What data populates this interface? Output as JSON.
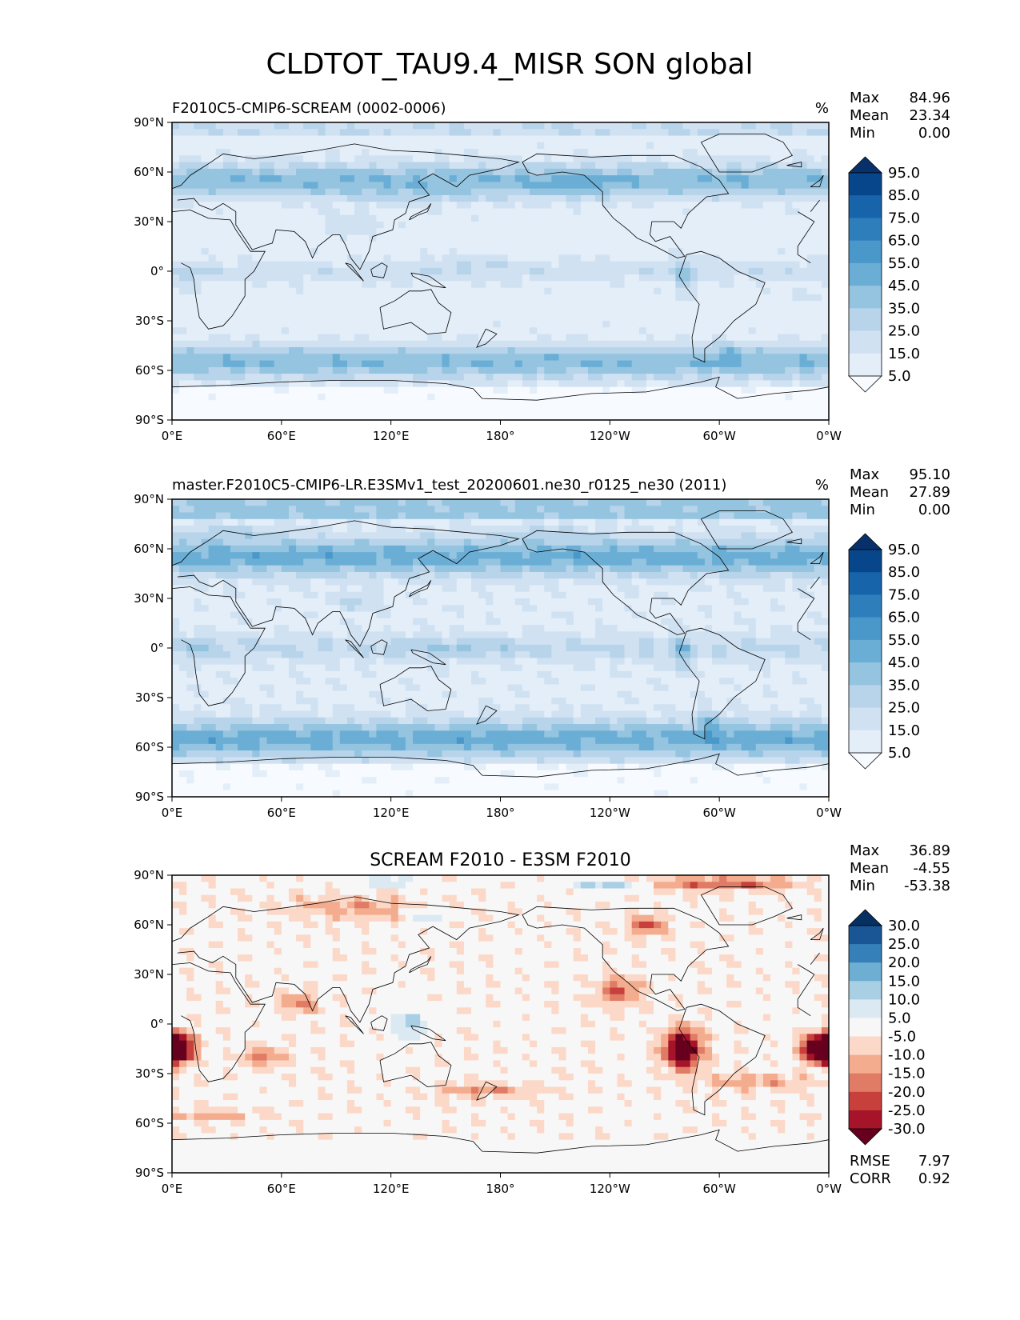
{
  "figure_title": "CLDTOT_TAU9.4_MISR SON global",
  "colors": {
    "blues": [
      "#f7fbff",
      "#e3eef9",
      "#d0e1f2",
      "#b7d4ea",
      "#94c4df",
      "#6aaed6",
      "#4a98c9",
      "#2e7ebc",
      "#1764ab",
      "#08468b",
      "#08306b"
    ],
    "diverging": [
      "#67001f",
      "#a51429",
      "#c7403b",
      "#e07b65",
      "#f4ac8e",
      "#fbd8c7",
      "#f7f7f7",
      "#dbe9f2",
      "#a9cfe5",
      "#6eaed2",
      "#3580b9",
      "#1a5696",
      "#053061"
    ],
    "land_outline": "#000000"
  },
  "chart_data": [
    {
      "type": "heatmap",
      "title": "F2010C5-CMIP6-SCREAM (0002-0006)",
      "units": "%",
      "stats": [
        {
          "label": "Max",
          "value": "84.96"
        },
        {
          "label": "Mean",
          "value": "23.34"
        },
        {
          "label": "Min",
          "value": "0.00"
        }
      ],
      "colorbar_labels": [
        "95.0",
        "85.0",
        "75.0",
        "65.0",
        "55.0",
        "45.0",
        "35.0",
        "25.0",
        "15.0",
        "5.0"
      ],
      "colormap": "blues",
      "xticks": [
        "0°E",
        "60°E",
        "120°E",
        "180°",
        "120°W",
        "60°W",
        "0°W"
      ],
      "yticks": [
        "90°N",
        "60°N",
        "30°N",
        "0°",
        "30°S",
        "60°S",
        "90°S"
      ],
      "xlim": [
        0,
        360
      ],
      "ylim": [
        -90,
        90
      ]
    },
    {
      "type": "heatmap",
      "title": "master.F2010C5-CMIP6-LR.E3SMv1_test_20200601.ne30_r0125_ne30 (2011)",
      "units": "%",
      "stats": [
        {
          "label": "Max",
          "value": "95.10"
        },
        {
          "label": "Mean",
          "value": "27.89"
        },
        {
          "label": "Min",
          "value": "0.00"
        }
      ],
      "colorbar_labels": [
        "95.0",
        "85.0",
        "75.0",
        "65.0",
        "55.0",
        "45.0",
        "35.0",
        "25.0",
        "15.0",
        "5.0"
      ],
      "colormap": "blues",
      "xticks": [
        "0°E",
        "60°E",
        "120°E",
        "180°",
        "120°W",
        "60°W",
        "0°W"
      ],
      "yticks": [
        "90°N",
        "60°N",
        "30°N",
        "0°",
        "30°S",
        "60°S",
        "90°S"
      ],
      "xlim": [
        0,
        360
      ],
      "ylim": [
        -90,
        90
      ]
    },
    {
      "type": "heatmap",
      "title": "SCREAM F2010 - E3SM F2010",
      "units": "",
      "stats": [
        {
          "label": "Max",
          "value": "36.89"
        },
        {
          "label": "Mean",
          "value": "-4.55"
        },
        {
          "label": "Min",
          "value": "-53.38"
        }
      ],
      "colorbar_labels": [
        "30.0",
        "25.0",
        "20.0",
        "15.0",
        "10.0",
        "5.0",
        "-5.0",
        "-10.0",
        "-15.0",
        "-20.0",
        "-25.0",
        "-30.0"
      ],
      "colormap": "diverging",
      "xticks": [
        "0°E",
        "60°E",
        "120°E",
        "180°",
        "120°W",
        "60°W",
        "0°W"
      ],
      "yticks": [
        "90°N",
        "60°N",
        "30°N",
        "0°",
        "30°S",
        "60°S",
        "90°S"
      ],
      "xlim": [
        0,
        360
      ],
      "ylim": [
        -90,
        90
      ],
      "metrics": [
        {
          "label": "RMSE",
          "value": "7.97"
        },
        {
          "label": "CORR",
          "value": "0.92"
        }
      ]
    }
  ]
}
